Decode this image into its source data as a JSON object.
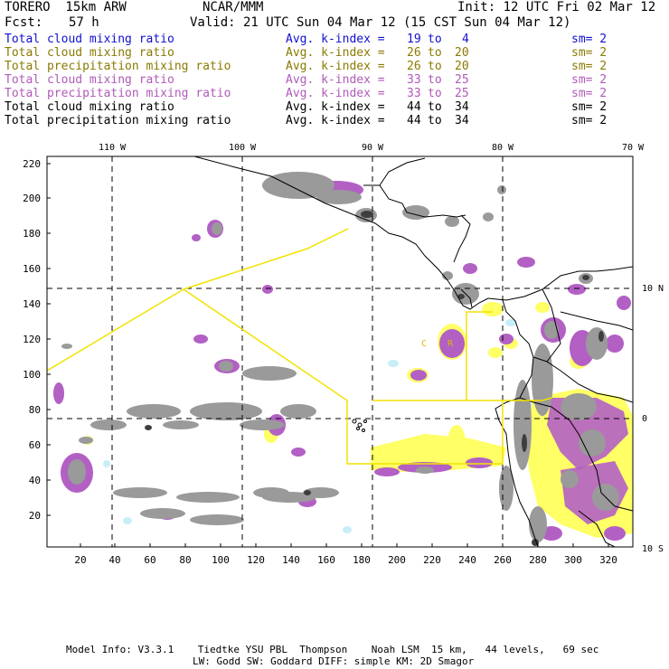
{
  "header": {
    "model": "TORERO  15km ARW",
    "org": "NCAR/MMM",
    "init": "Init: 12 UTC Fri 02 Mar 12",
    "fcst_label": "Fcst:",
    "fcst_value": "57 h",
    "valid": "Valid: 21 UTC Sun 04 Mar 12 (15 CST Sun 04 Mar 12)"
  },
  "legend": [
    {
      "field": "Total cloud mixing ratio",
      "kidx": "Avg. k-index =",
      "v1": "19",
      "to": "to",
      "v2": "4",
      "sm": "sm= 2",
      "color": "#1010d0"
    },
    {
      "field": "Total cloud mixing ratio",
      "kidx": "Avg. k-index =",
      "v1": "26",
      "to": "to",
      "v2": "20",
      "sm": "sm= 2",
      "color": "#8a7a00"
    },
    {
      "field": "Total precipitation mixing ratio",
      "kidx": "Avg. k-index =",
      "v1": "26",
      "to": "to",
      "v2": "20",
      "sm": "sm= 2",
      "color": "#8a7a00"
    },
    {
      "field": "Total cloud mixing ratio",
      "kidx": "Avg. k-index =",
      "v1": "33",
      "to": "to",
      "v2": "25",
      "sm": "sm= 2",
      "color": "#b05ab8"
    },
    {
      "field": "Total precipitation mixing ratio",
      "kidx": "Avg. k-index =",
      "v1": "33",
      "to": "to",
      "v2": "25",
      "sm": "sm= 2",
      "color": "#b05ab8"
    },
    {
      "field": "Total cloud mixing ratio",
      "kidx": "Avg. k-index =",
      "v1": "44",
      "to": "to",
      "v2": "34",
      "sm": "sm= 2",
      "color": "#000000"
    },
    {
      "field": "Total precipitation mixing ratio",
      "kidx": "Avg. k-index =",
      "v1": "44",
      "to": "to",
      "v2": "34",
      "sm": "sm= 2",
      "color": "#000000"
    }
  ],
  "map": {
    "lon_top_labels": [
      "110 W",
      "100 W",
      "90 W",
      "80 W",
      "70 W"
    ],
    "lat_right_labels": [
      "10 N",
      "0",
      "10 S"
    ],
    "y_ticks": [
      "220",
      "200",
      "180",
      "160",
      "140",
      "120",
      "100",
      "80",
      "60",
      "40",
      "20"
    ],
    "x_ticks": [
      "20",
      "40",
      "60",
      "80",
      "100",
      "120",
      "140",
      "160",
      "180",
      "200",
      "220",
      "240",
      "260",
      "280",
      "300",
      "320"
    ],
    "markers": [
      "C",
      "R"
    ],
    "colors": {
      "gray": "#9a9a9a",
      "dark": "#4a4a4a",
      "purple": "#b260c4",
      "yellow": "#ffff66",
      "cyan": "#c8eef8",
      "box": "#ffee00"
    }
  },
  "footer": {
    "line1": "Model Info: V3.3.1    Tiedtke YSU PBL  Thompson    Noah LSM  15 km,   44 levels,   69 sec",
    "line2": "LW: Godd SW: Goddard DIFF: simple KM: 2D Smagor"
  }
}
